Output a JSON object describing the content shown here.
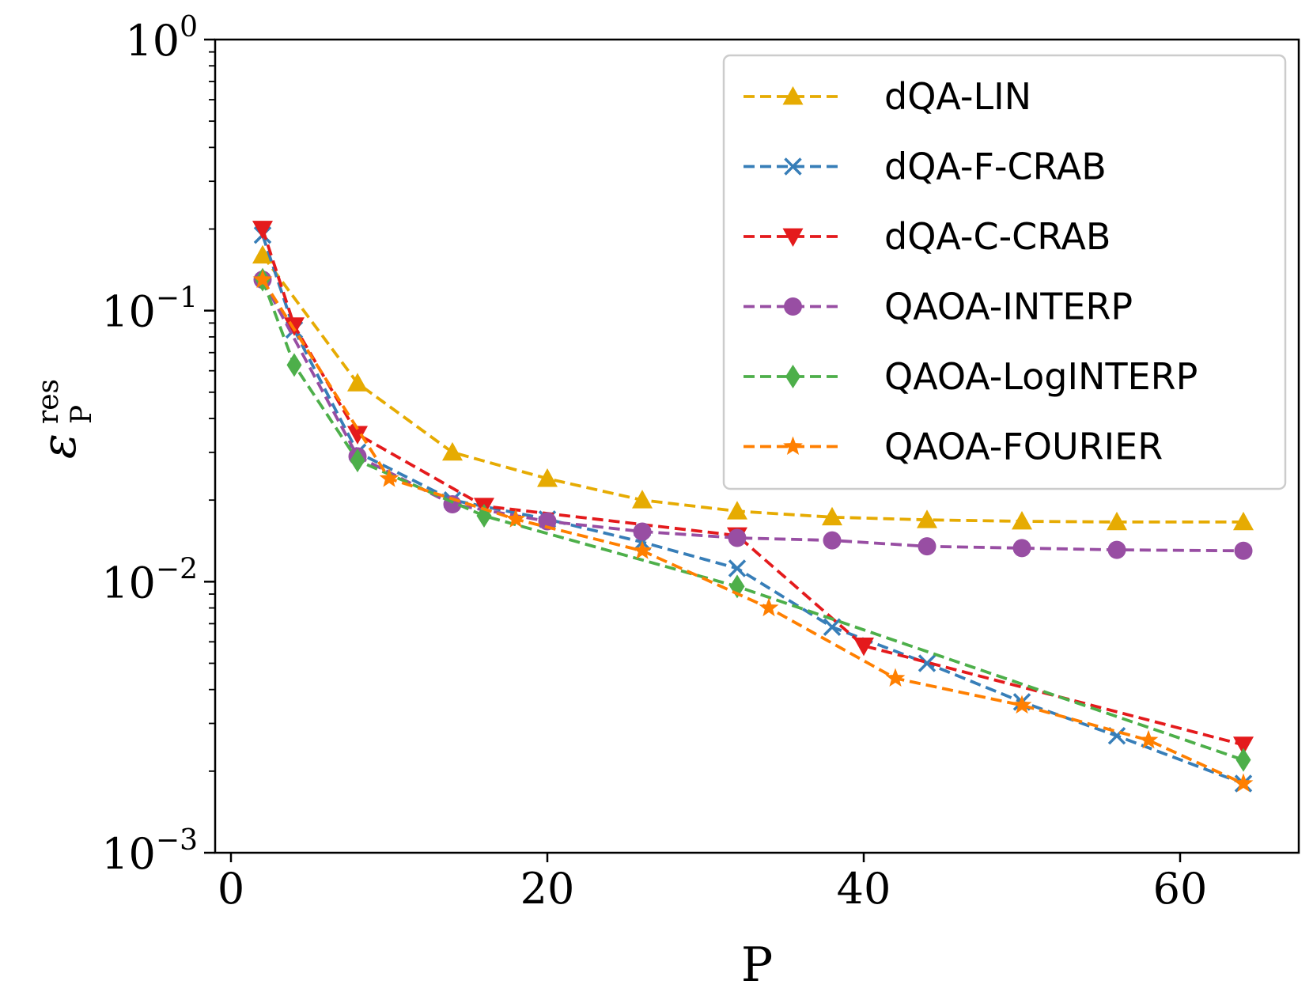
{
  "chart_data": {
    "type": "line",
    "title": "",
    "xlabel": "P",
    "ylabel": {
      "base": "ε",
      "superscript": "res",
      "subscript": "P"
    },
    "xlim": [
      -1,
      67.5
    ],
    "ylim": [
      0.001,
      1
    ],
    "yscale": "log",
    "xticks": [
      {
        "value": 0,
        "label": "0"
      },
      {
        "value": 20,
        "label": "20"
      },
      {
        "value": 40,
        "label": "40"
      },
      {
        "value": 60,
        "label": "60"
      }
    ],
    "yticks": [
      {
        "value": 0.001,
        "base": "10",
        "exp": "−3"
      },
      {
        "value": 0.01,
        "base": "10",
        "exp": "−2"
      },
      {
        "value": 0.1,
        "base": "10",
        "exp": "−1"
      },
      {
        "value": 1,
        "base": "10",
        "exp": "0"
      }
    ],
    "legend_position": "top-right",
    "series": [
      {
        "name": "dQA-LIN",
        "color": "#E6AB02",
        "marker": "triangle-up",
        "x": [
          2,
          8,
          14,
          20,
          26,
          32,
          38,
          44,
          50,
          56,
          64
        ],
        "y": [
          0.16,
          0.054,
          0.03,
          0.024,
          0.02,
          0.0182,
          0.0173,
          0.0169,
          0.0167,
          0.0166,
          0.0166
        ]
      },
      {
        "name": "dQA-F-CRAB",
        "color": "#377EB8",
        "marker": "x",
        "x": [
          2,
          4,
          8,
          14,
          20,
          26,
          32,
          38,
          44,
          50,
          56,
          64
        ],
        "y": [
          0.19,
          0.085,
          0.03,
          0.02,
          0.017,
          0.014,
          0.0112,
          0.0068,
          0.005,
          0.0036,
          0.0027,
          0.0018
        ]
      },
      {
        "name": "dQA-C-CRAB",
        "color": "#E41A1C",
        "marker": "triangle-down",
        "x": [
          2,
          4,
          8,
          16,
          32,
          40,
          64
        ],
        "y": [
          0.2,
          0.088,
          0.035,
          0.019,
          0.0148,
          0.0058,
          0.0025
        ]
      },
      {
        "name": "QAOA-INTERP",
        "color": "#984EA3",
        "marker": "circle",
        "x": [
          2,
          8,
          14,
          20,
          26,
          32,
          38,
          44,
          50,
          56,
          64
        ],
        "y": [
          0.13,
          0.029,
          0.0193,
          0.0167,
          0.0153,
          0.0145,
          0.0142,
          0.0135,
          0.0133,
          0.0131,
          0.013
        ]
      },
      {
        "name": "QAOA-LogINTERP",
        "color": "#4DAF4A",
        "marker": "diamond",
        "x": [
          2,
          4,
          8,
          16,
          32,
          64
        ],
        "y": [
          0.13,
          0.063,
          0.028,
          0.0175,
          0.0096,
          0.0022
        ]
      },
      {
        "name": "QAOA-FOURIER",
        "color": "#FF7F00",
        "marker": "star",
        "x": [
          2,
          10,
          18,
          26,
          34,
          42,
          50,
          58,
          64
        ],
        "y": [
          0.13,
          0.024,
          0.017,
          0.013,
          0.008,
          0.0044,
          0.0035,
          0.0026,
          0.0018
        ]
      }
    ]
  }
}
